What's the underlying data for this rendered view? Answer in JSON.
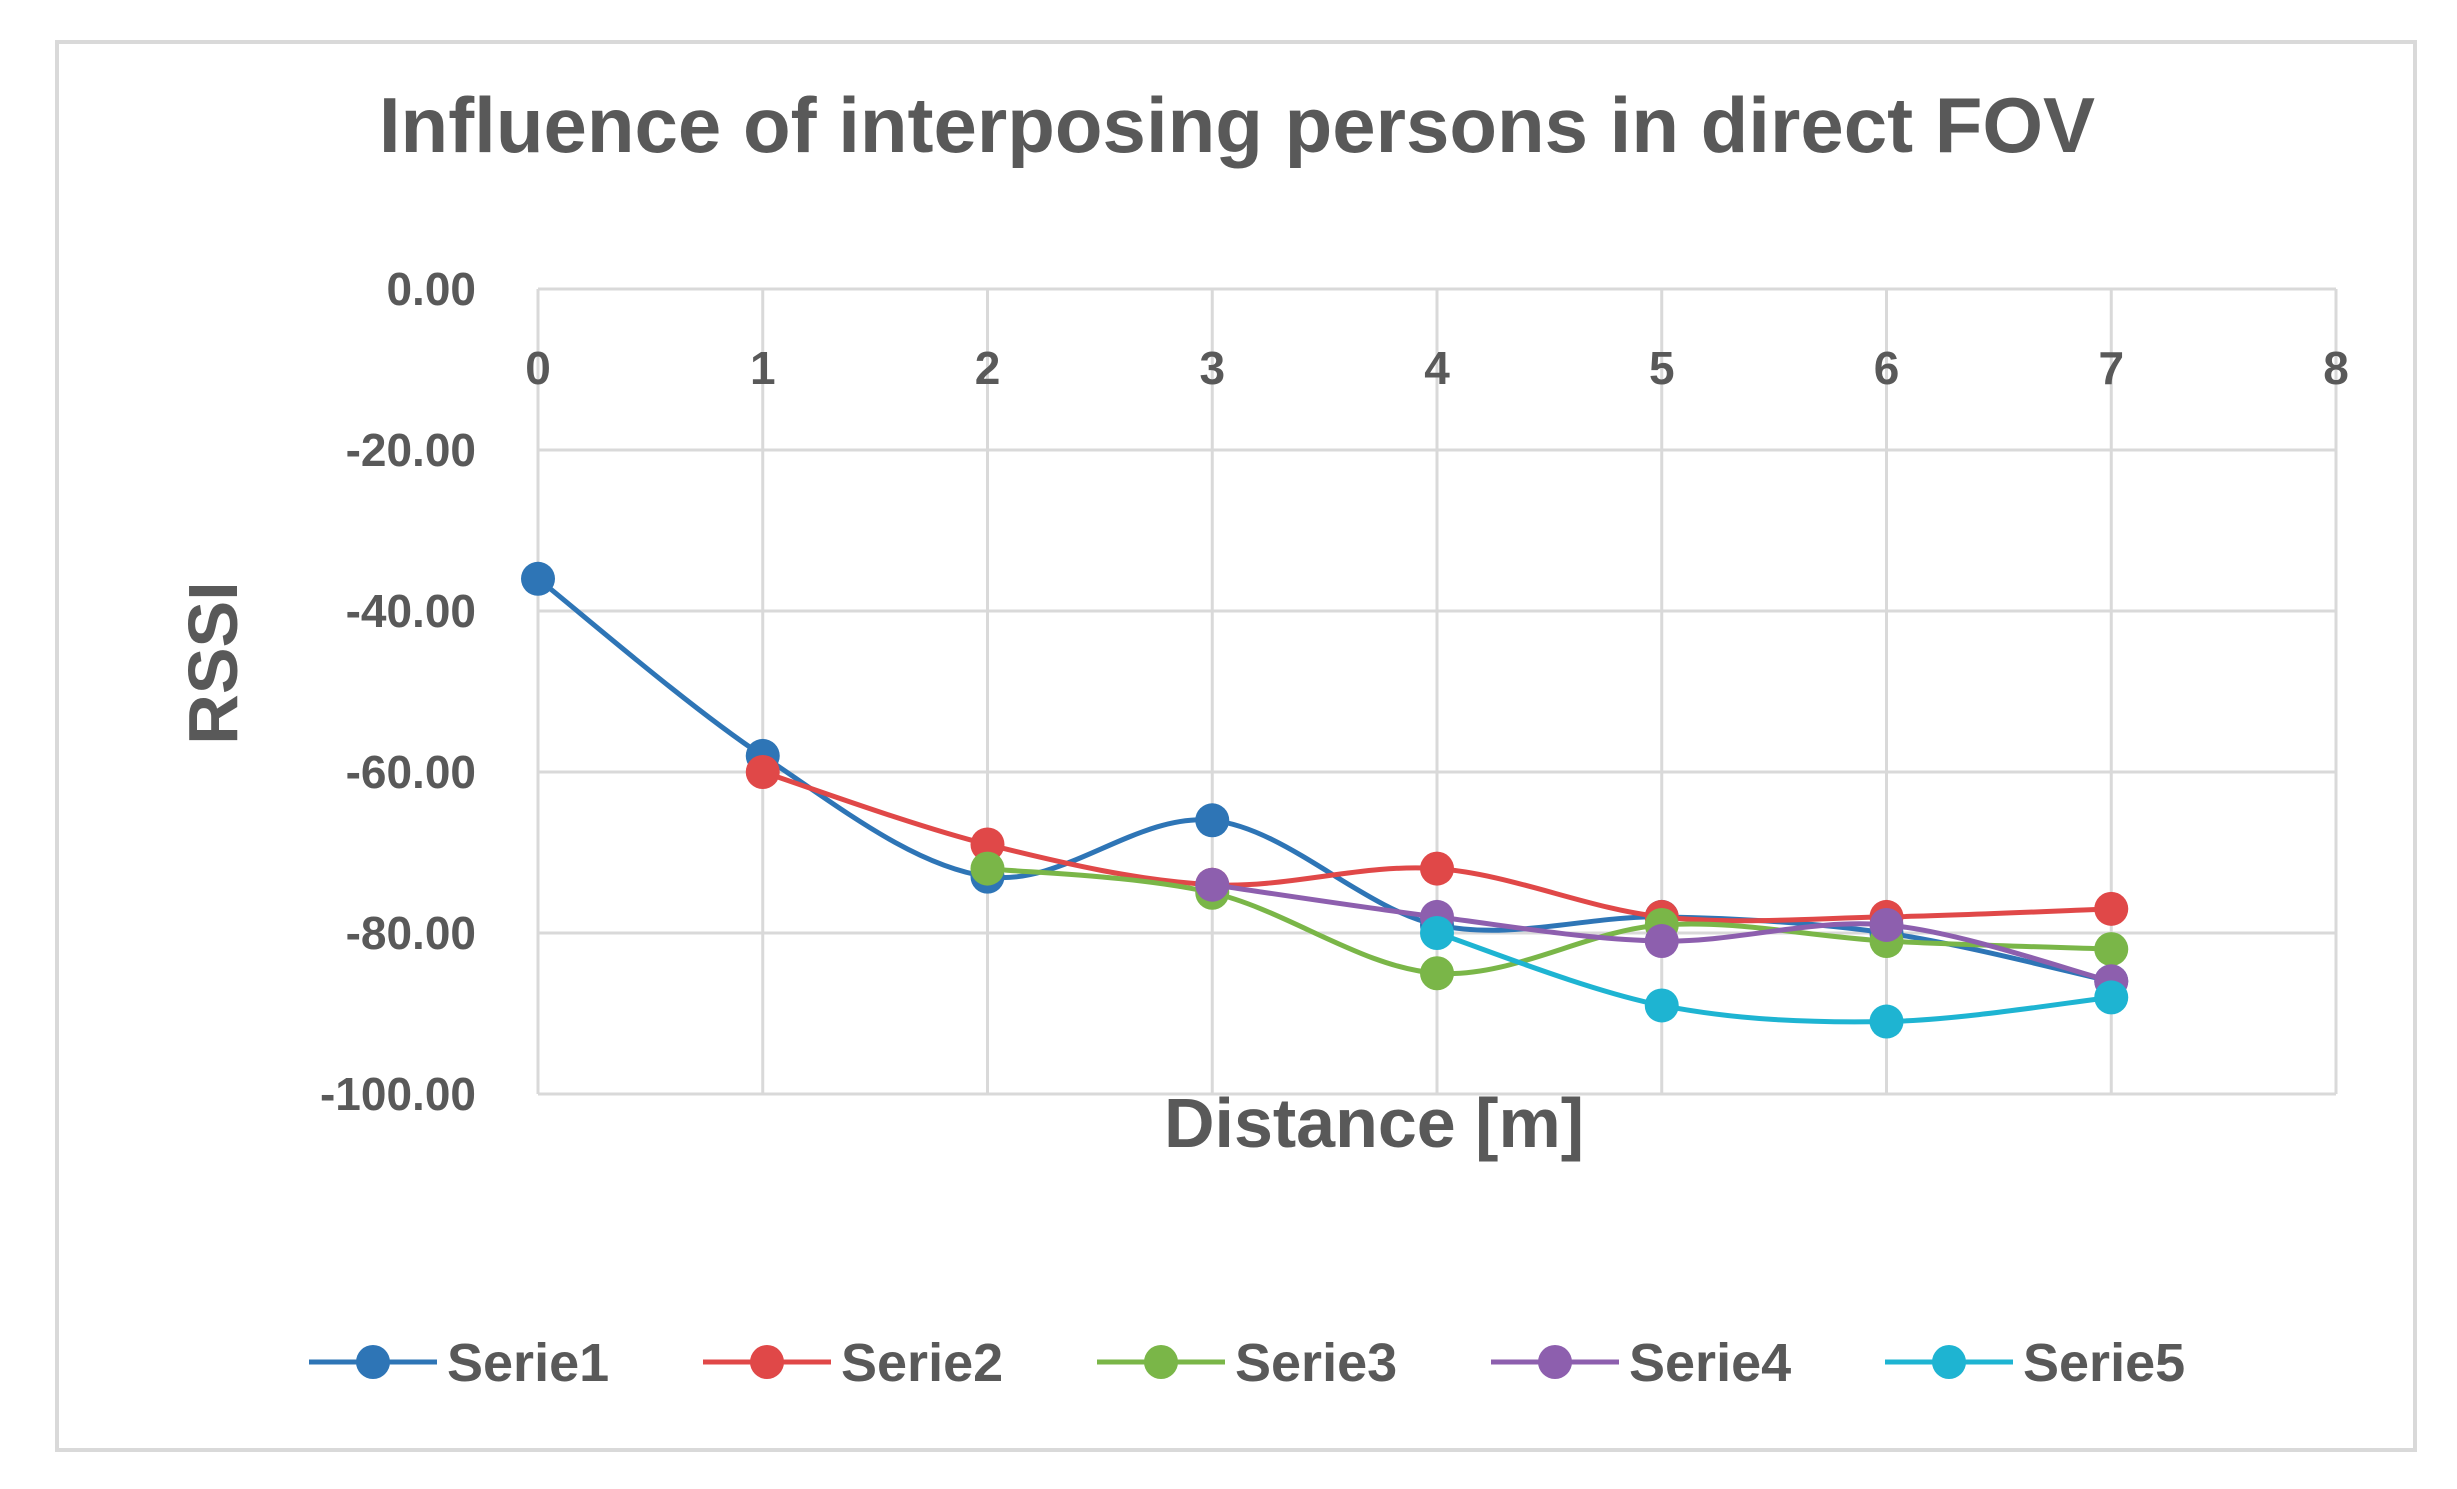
{
  "chart_data": {
    "type": "line",
    "title": "Influence of interposing persons in direct FOV",
    "xlabel": "Distance [m]",
    "ylabel": "RSSI",
    "xlim": [
      0,
      8
    ],
    "ylim": [
      -100,
      0
    ],
    "x_ticks": [
      "0",
      "1",
      "2",
      "3",
      "4",
      "5",
      "6",
      "7",
      "8"
    ],
    "y_ticks": [
      "0.00",
      "-20.00",
      "-40.00",
      "-60.00",
      "-80.00",
      "-100.00"
    ],
    "grid": true,
    "legend_position": "bottom",
    "series": [
      {
        "name": "Serie1",
        "color": "#2e75b6",
        "points": [
          [
            0,
            -36
          ],
          [
            1,
            -58
          ],
          [
            2,
            -73
          ],
          [
            3,
            -66
          ],
          [
            4,
            -79
          ],
          [
            5,
            -78
          ],
          [
            6,
            -80
          ],
          [
            7,
            -86
          ]
        ]
      },
      {
        "name": "Serie2",
        "color": "#e04848",
        "points": [
          [
            1,
            -60
          ],
          [
            2,
            -69
          ],
          [
            3,
            -74
          ],
          [
            4,
            -72
          ],
          [
            5,
            -78
          ],
          [
            6,
            -78
          ],
          [
            7,
            -77
          ]
        ]
      },
      {
        "name": "Serie3",
        "color": "#7ab648",
        "points": [
          [
            2,
            -72
          ],
          [
            3,
            -75
          ],
          [
            4,
            -85
          ],
          [
            5,
            -79
          ],
          [
            6,
            -81
          ],
          [
            7,
            -82
          ]
        ]
      },
      {
        "name": "Serie4",
        "color": "#8d5fae",
        "points": [
          [
            3,
            -74
          ],
          [
            4,
            -78
          ],
          [
            5,
            -81
          ],
          [
            6,
            -79
          ],
          [
            7,
            -86
          ]
        ]
      },
      {
        "name": "Serie5",
        "color": "#1eb4d2",
        "points": [
          [
            4,
            -80
          ],
          [
            5,
            -89
          ],
          [
            6,
            -91
          ],
          [
            7,
            -88
          ]
        ]
      }
    ]
  }
}
